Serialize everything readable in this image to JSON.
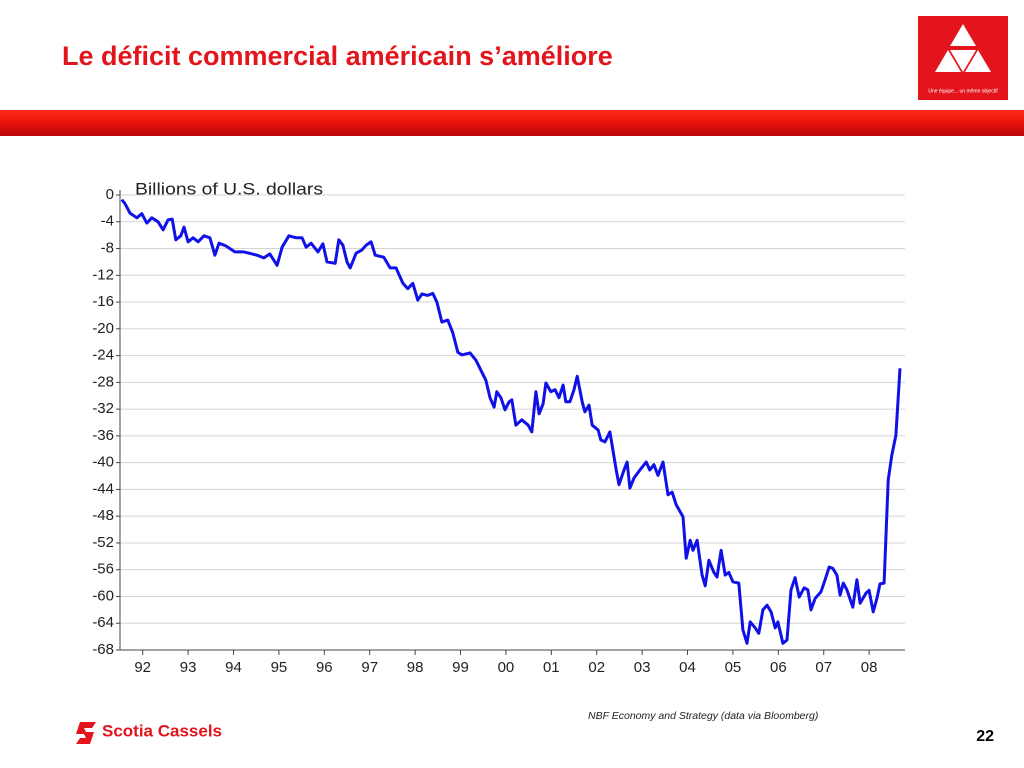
{
  "header": {
    "title": "Le déficit commercial américain s’améliore"
  },
  "logo": {
    "tagline": "Une équipe... un même objectif"
  },
  "chart_data": {
    "type": "line",
    "y_label": "Billions of U.S. dollars",
    "color": "#1010e8",
    "grid": true,
    "xlim": [
      1992.0,
      2009.29
    ],
    "ylim": [
      -68,
      0
    ],
    "yticks": [
      0,
      -4,
      -8,
      -12,
      -16,
      -20,
      -24,
      -28,
      -32,
      -36,
      -40,
      -44,
      -48,
      -52,
      -56,
      -60,
      -64,
      -68
    ],
    "xticks": [
      {
        "value": 1992.5,
        "label": "92"
      },
      {
        "value": 1993.5,
        "label": "93"
      },
      {
        "value": 1994.5,
        "label": "94"
      },
      {
        "value": 1995.5,
        "label": "95"
      },
      {
        "value": 1996.5,
        "label": "96"
      },
      {
        "value": 1997.5,
        "label": "97"
      },
      {
        "value": 1998.5,
        "label": "98"
      },
      {
        "value": 1999.5,
        "label": "99"
      },
      {
        "value": 2000.5,
        "label": "00"
      },
      {
        "value": 2001.5,
        "label": "01"
      },
      {
        "value": 2002.5,
        "label": "02"
      },
      {
        "value": 2003.5,
        "label": "03"
      },
      {
        "value": 2004.5,
        "label": "04"
      },
      {
        "value": 2005.5,
        "label": "05"
      },
      {
        "value": 2006.5,
        "label": "06"
      },
      {
        "value": 2007.5,
        "label": "07"
      },
      {
        "value": 2008.5,
        "label": "08"
      }
    ],
    "x": [
      1992.04,
      1992.11,
      1992.22,
      1992.37,
      1992.48,
      1992.59,
      1992.7,
      1992.84,
      1992.95,
      1993.06,
      1993.15,
      1993.23,
      1993.34,
      1993.41,
      1993.5,
      1993.61,
      1993.72,
      1993.85,
      1993.98,
      1994.09,
      1994.18,
      1994.33,
      1994.53,
      1994.73,
      1994.91,
      1995.02,
      1995.17,
      1995.3,
      1995.46,
      1995.57,
      1995.72,
      1995.88,
      1996.01,
      1996.1,
      1996.21,
      1996.36,
      1996.47,
      1996.56,
      1996.74,
      1996.82,
      1996.91,
      1997.0,
      1997.07,
      1997.2,
      1997.33,
      1997.42,
      1997.53,
      1997.62,
      1997.81,
      1997.95,
      1998.08,
      1998.23,
      1998.34,
      1998.45,
      1998.56,
      1998.65,
      1998.78,
      1998.89,
      1998.98,
      1999.09,
      1999.22,
      1999.33,
      1999.44,
      1999.53,
      1999.71,
      1999.84,
      1999.97,
      2000.06,
      2000.15,
      2000.24,
      2000.3,
      2000.39,
      2000.48,
      2000.57,
      2000.63,
      2000.72,
      2000.85,
      2000.99,
      2001.07,
      2001.16,
      2001.23,
      2001.32,
      2001.38,
      2001.49,
      2001.58,
      2001.67,
      2001.76,
      2001.82,
      2001.91,
      2002.0,
      2002.07,
      2002.18,
      2002.24,
      2002.33,
      2002.4,
      2002.53,
      2002.59,
      2002.68,
      2002.79,
      2002.93,
      2002.99,
      2003.1,
      2003.17,
      2003.23,
      2003.32,
      2003.45,
      2003.59,
      2003.67,
      2003.76,
      2003.85,
      2003.96,
      2004.07,
      2004.16,
      2004.25,
      2004.4,
      2004.47,
      2004.56,
      2004.62,
      2004.71,
      2004.82,
      2004.89,
      2004.97,
      2005.08,
      2005.15,
      2005.24,
      2005.33,
      2005.41,
      2005.5,
      2005.63,
      2005.72,
      2005.81,
      2005.88,
      2005.99,
      2006.07,
      2006.16,
      2006.25,
      2006.34,
      2006.43,
      2006.49,
      2006.6,
      2006.69,
      2006.78,
      2006.87,
      2006.96,
      2007.07,
      2007.15,
      2007.22,
      2007.31,
      2007.44,
      2007.53,
      2007.62,
      2007.7,
      2007.79,
      2007.86,
      2007.93,
      2008.01,
      2008.14,
      2008.23,
      2008.3,
      2008.43,
      2008.5,
      2008.59,
      2008.67,
      2008.74,
      2008.83,
      2008.92,
      2009.0,
      2009.09,
      2009.18
    ],
    "values": [
      -0.7,
      -1.3,
      -2.7,
      -3.4,
      -2.8,
      -4.2,
      -3.4,
      -4,
      -5.2,
      -3.7,
      -3.6,
      -6.7,
      -6.1,
      -4.8,
      -7,
      -6.4,
      -7,
      -6.1,
      -6.4,
      -9,
      -7.2,
      -7.6,
      -8.5,
      -8.5,
      -8.8,
      -9,
      -9.4,
      -8.8,
      -10.5,
      -7.8,
      -6.1,
      -6.4,
      -6.4,
      -7.8,
      -7.2,
      -8.5,
      -7.3,
      -10,
      -10.2,
      -6.7,
      -7.5,
      -10,
      -10.9,
      -8.7,
      -8.2,
      -7.5,
      -7,
      -9,
      -9.3,
      -10.9,
      -10.9,
      -13.2,
      -14,
      -13.2,
      -15.7,
      -14.8,
      -15,
      -14.7,
      -16,
      -19,
      -18.7,
      -20.6,
      -23.5,
      -23.9,
      -23.6,
      -24.7,
      -26.5,
      -27.7,
      -30.3,
      -31.7,
      -29.4,
      -30.3,
      -32.1,
      -30.9,
      -30.6,
      -34.4,
      -33.6,
      -34.4,
      -35.4,
      -29.4,
      -32.7,
      -31.2,
      -28.1,
      -29.4,
      -29.1,
      -30.3,
      -28.4,
      -30.9,
      -30.9,
      -29.1,
      -27.1,
      -30.9,
      -32.4,
      -31.4,
      -34.4,
      -35.1,
      -36.6,
      -36.9,
      -35.4,
      -41.1,
      -43.3,
      -41.1,
      -39.9,
      -43.8,
      -42.3,
      -41.1,
      -39.9,
      -41.1,
      -40.3,
      -41.9,
      -39.9,
      -44.8,
      -44.4,
      -46.3,
      -48.1,
      -54.3,
      -51.6,
      -53.1,
      -51.6,
      -56.8,
      -58.4,
      -54.6,
      -56.4,
      -57.1,
      -53.1,
      -56.8,
      -56.4,
      -57.8,
      -58,
      -65,
      -67,
      -63.8,
      -64.7,
      -65.5,
      -62,
      -61.3,
      -62.3,
      -64.7,
      -63.8,
      -67,
      -66.5,
      -59,
      -57.2,
      -60.1,
      -58.7,
      -59,
      -62,
      -60.3,
      -59.3,
      -57.5,
      -55.6,
      -55.8,
      -56.8,
      -59.8,
      -58,
      -59,
      -61.6,
      -57.5,
      -61,
      -59.5,
      -59.1,
      -62.3,
      -60.3,
      -58.1,
      -58,
      -42.6,
      -38.9,
      -35.9,
      -25.9
    ]
  },
  "footer": {
    "brand": "Scotia Cassels",
    "source": "NBF Economy and Strategy (data via Bloomberg)",
    "page_number": "22"
  }
}
